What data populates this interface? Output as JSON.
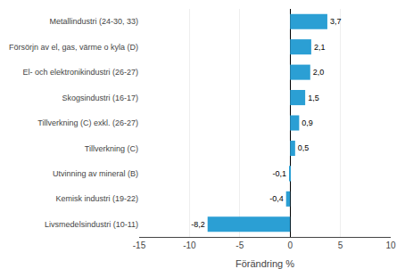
{
  "chart_data": {
    "type": "bar",
    "orientation": "horizontal",
    "categories": [
      "Livsmedelsindustri (10-11)",
      "Kemisk industri (19-22)",
      "Utvinning av mineral (B)",
      "Tillverkning (C)",
      "Tillverkning (C) exkl. (26-27)",
      "Skogsindustri (16-17)",
      "El- och elektronikindustri (26-27)",
      "Försörjn av el, gas, värme o kyla (D)",
      "Metallindustri (24-30, 33)"
    ],
    "values": [
      -8.2,
      -0.4,
      -0.1,
      0.5,
      0.9,
      1.5,
      2.0,
      2.1,
      3.7
    ],
    "value_labels": [
      "-8,2",
      "-0,4",
      "-0,1",
      "0,5",
      "0,9",
      "1,5",
      "2,0",
      "2,1",
      "3,7"
    ],
    "data_labels": true,
    "color": "#2b9fd4",
    "xlabel": "Förändring %",
    "xlim": [
      -15,
      10
    ],
    "xticks": [
      -15,
      -10,
      -5,
      0,
      5,
      10
    ],
    "grid": true
  }
}
